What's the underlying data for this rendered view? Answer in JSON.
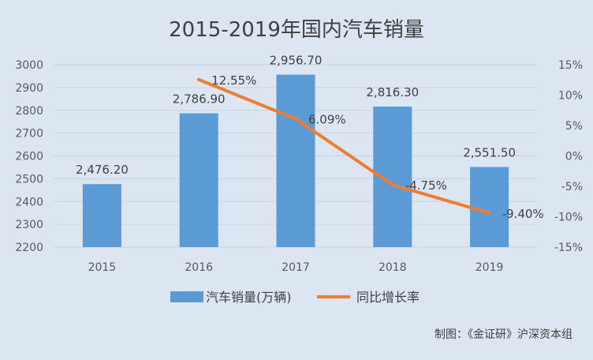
{
  "chart_data": {
    "type": "bar+line",
    "title": "2015-2019年国内汽车销量",
    "categories": [
      "2015",
      "2016",
      "2017",
      "2018",
      "2019"
    ],
    "series": [
      {
        "name": "汽车销量(万辆)",
        "type": "bar",
        "axis": "left",
        "values": [
          2476.2,
          2786.9,
          2956.7,
          2816.3,
          2551.5
        ],
        "labels": [
          "2,476.20",
          "2,786.90",
          "2,956.70",
          "2,816.30",
          "2,551.50"
        ],
        "color": "#5b9bd5"
      },
      {
        "name": "同比增长率",
        "type": "line",
        "axis": "right",
        "x": [
          "2016",
          "2017",
          "2018",
          "2019"
        ],
        "values": [
          12.55,
          6.09,
          -4.75,
          -9.4
        ],
        "labels": [
          "12.55%",
          "6.09%",
          "-4.75%",
          "-9.40%"
        ],
        "color": "#ed7d31"
      }
    ],
    "left_axis": {
      "ylim": [
        2200,
        3000
      ],
      "ticks": [
        "2200",
        "2300",
        "2400",
        "2500",
        "2600",
        "2700",
        "2800",
        "2900",
        "3000"
      ]
    },
    "right_axis": {
      "ylim": [
        -15,
        15
      ],
      "ticks": [
        "-15%",
        "-10%",
        "-5%",
        "0%",
        "5%",
        "10%",
        "15%"
      ]
    },
    "grid": true,
    "legend": "bottom"
  },
  "footer": "制图：《金证研》沪深资本组",
  "colors": {
    "background": "#dce6f2",
    "grid": "#c6d2e1",
    "text": "#595959",
    "title": "#404040"
  }
}
